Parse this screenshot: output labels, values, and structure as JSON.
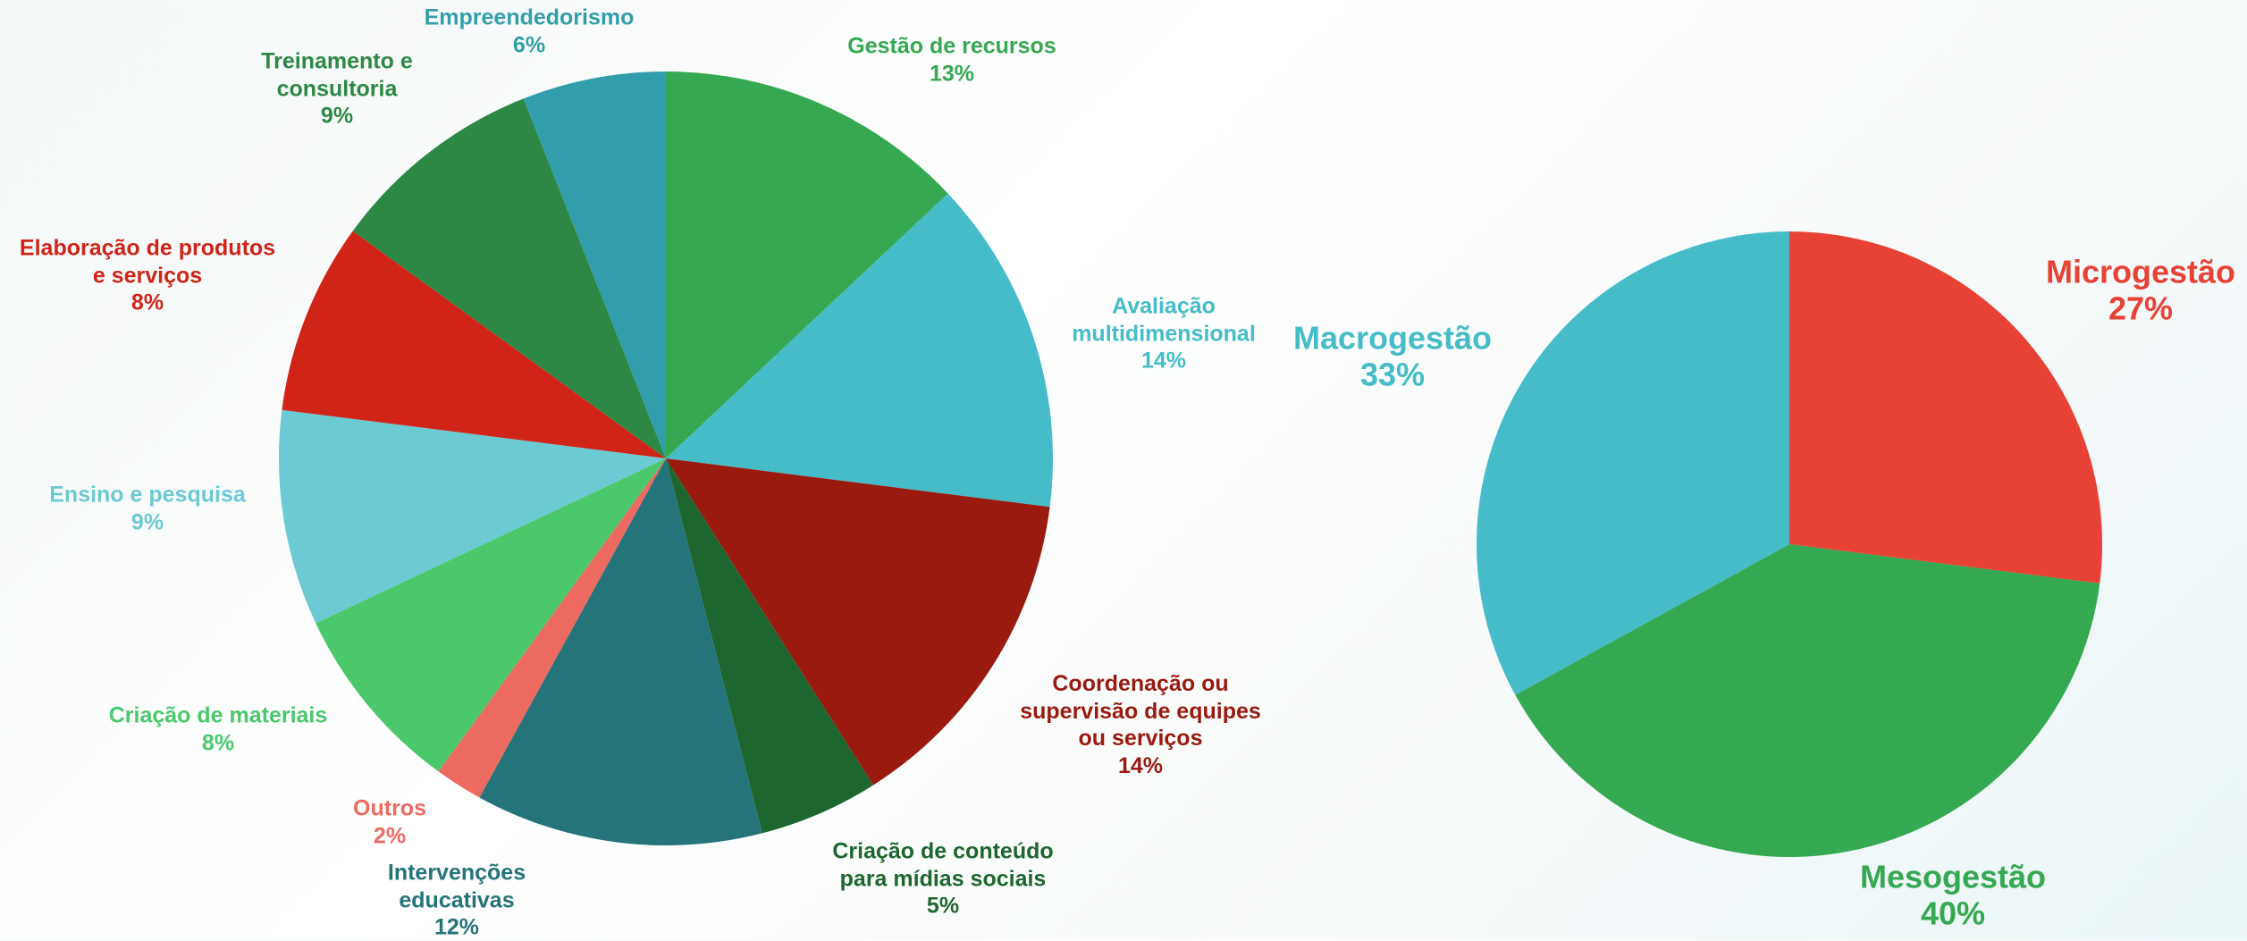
{
  "chart_data": [
    {
      "type": "pie",
      "categories": [
        "Gestão de recursos",
        "Avaliação\nmultidimensional",
        "Coordenação ou\nsupervisão de equipes\nou serviços",
        "Criação de conteúdo\npara mídias sociais",
        "Intervenções\neducativas",
        "Outros",
        "Criação de materiais",
        "Ensino e pesquisa",
        "Elaboração de produtos\ne serviços",
        "Treinamento e\nconsultoria",
        "Empreendedorismo"
      ],
      "values": [
        13,
        14,
        14,
        5,
        12,
        2,
        8,
        9,
        8,
        9,
        6
      ],
      "value_labels": [
        "13%",
        "14%",
        "14%",
        "5%",
        "12%",
        "2%",
        "8%",
        "9%",
        "8%",
        "9%",
        "6%"
      ],
      "colors": [
        "#36a852",
        "#45bcc8",
        "#9a1a10",
        "#1e6630",
        "#25747a",
        "#ec6a60",
        "#4cc86c",
        "#6ccad3",
        "#d02418",
        "#2c8844",
        "#339eab"
      ]
    },
    {
      "type": "pie",
      "categories": [
        "Microgestão",
        "Mesogestão",
        "Macrogestão"
      ],
      "values": [
        27,
        40,
        33
      ],
      "value_labels": [
        "27%",
        "40%",
        "33%"
      ],
      "colors": [
        "#e84236",
        "#35a852",
        "#45bcc8"
      ]
    }
  ]
}
